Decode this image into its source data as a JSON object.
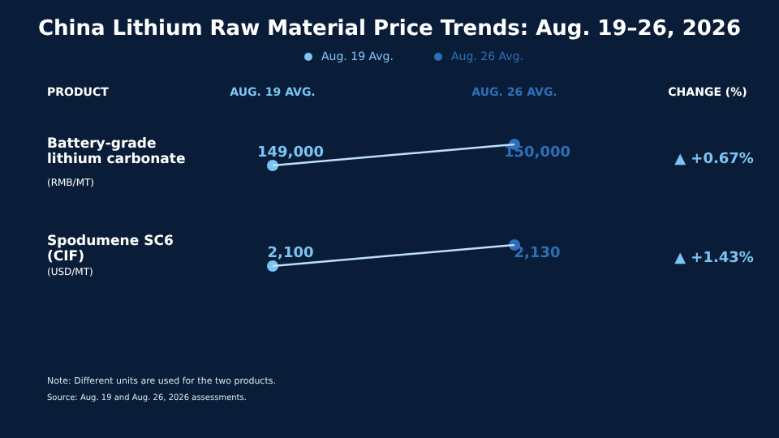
{
  "chart_data": [
    {
      "type": "line",
      "title": "China Lithium Raw Material Price Trends: Aug. 19–26, 2026",
      "legend": "top",
      "categories": [
        "AUG. 19 AVG.",
        "AUG. 26 AVG."
      ],
      "ylabel": "Battery-grade lithium carbonate",
      "series": [
        {
          "type": "line",
          "color": "#bfe0fb",
          "values": [
            149000,
            150000
          ]
        },
        {
          "type": "scatter",
          "name": "Aug. 19 Avg.",
          "color": "#7cc4f4",
          "marker": "circle",
          "values": [
            149000,
            null
          ],
          "value_labels": [
            "149,000",
            null
          ]
        },
        {
          "type": "scatter",
          "name": "Aug. 26 Avg.",
          "color": "#2f6fb8",
          "marker": "circle",
          "values": [
            null,
            150000
          ],
          "value_labels": [
            null,
            "150,000"
          ]
        }
      ],
      "annotations": [
        "PRODUCT",
        "CHANGE (%)",
        "(RMB/MT)",
        "▲ +0.67%"
      ]
    },
    {
      "type": "line",
      "categories": [
        null,
        null
      ],
      "ylabel": "Spodumene SC6 (CIF)",
      "series": [
        {
          "type": "line",
          "color": "#bfe0fb",
          "values": [
            2100,
            2130
          ]
        },
        {
          "type": "scatter",
          "color": "#7cc4f4",
          "marker": "circle",
          "values": [
            2100,
            null
          ],
          "value_labels": [
            "2,100",
            null
          ]
        },
        {
          "type": "scatter",
          "color": "#2f6fb8",
          "marker": "circle",
          "values": [
            null,
            2130
          ],
          "value_labels": [
            null,
            "2,130"
          ]
        }
      ],
      "annotations": [
        "(USD/MT)",
        "▲ +1.43%",
        "Note: Different units are used for the two products.",
        "Source: Aug. 19 and Aug. 26, 2026 assessments."
      ]
    }
  ]
}
